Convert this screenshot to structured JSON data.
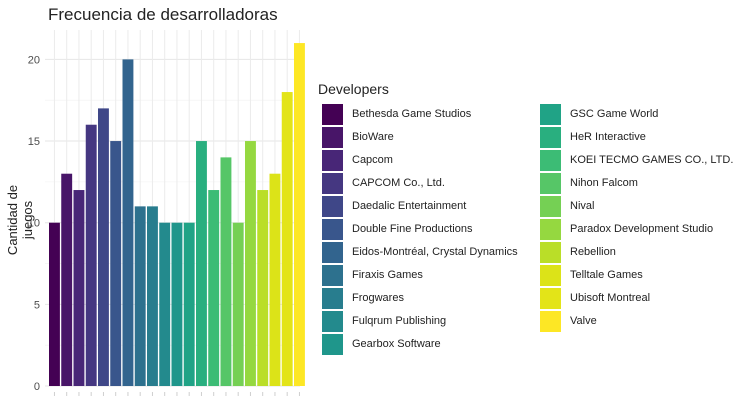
{
  "chart_data": {
    "type": "bar",
    "title": "Frecuencia de desarrolladoras",
    "xlabel": "",
    "ylabel": "Cantidad de juegos",
    "ylim": [
      0,
      21.8
    ],
    "yticks": [
      0,
      5,
      10,
      15,
      20
    ],
    "grid": true,
    "legend_title": "Developers",
    "legend_position": "right",
    "categories": [
      "Bethesda Game Studios",
      "BioWare",
      "Capcom",
      "CAPCOM Co., Ltd.",
      "Daedalic Entertainment",
      "Double Fine Productions",
      "Eidos-Montréal, Crystal Dynamics",
      "Firaxis Games",
      "Frogwares",
      "Fulqrum Publishing",
      "Gearbox Software",
      "GSC Game World",
      "HeR Interactive",
      "KOEI TECMO GAMES CO., LTD.",
      "Nihon Falcom",
      "Nival",
      "Paradox Development Studio",
      "Rebellion",
      "Telltale Games",
      "Ubisoft Montreal",
      "Valve"
    ],
    "values": [
      10,
      13,
      12,
      16,
      17,
      15,
      20,
      11,
      11,
      10,
      10,
      10,
      15,
      12,
      14,
      10,
      15,
      12,
      13,
      18,
      21
    ],
    "colors": [
      "#440154",
      "#481568",
      "#482677",
      "#453781",
      "#3F4788",
      "#39568C",
      "#32648E",
      "#2D718E",
      "#287D8E",
      "#238A8D",
      "#1F968B",
      "#20A386",
      "#29AF7F",
      "#3CBC75",
      "#56C667",
      "#75D054",
      "#95D840",
      "#BADE28",
      "#DCE318",
      "#E3E418",
      "#FDE725"
    ]
  }
}
